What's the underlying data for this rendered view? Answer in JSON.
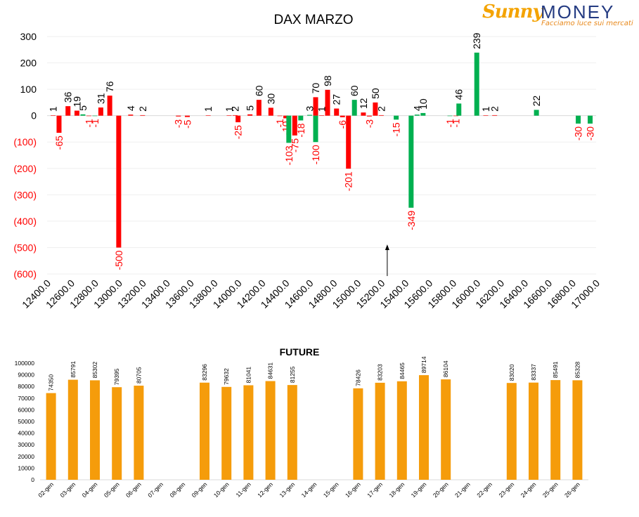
{
  "logo": {
    "brand_a": "Sunny",
    "brand_b": "MONEY",
    "tagline": "Facciamo luce sui mercati"
  },
  "colors": {
    "positive": "#00b050",
    "negative": "#ff0000",
    "negative_label": "#ff0000",
    "future_bar": "#f59c0b",
    "text": "#000000"
  },
  "chart_data": [
    {
      "type": "bar",
      "title": "DAX MARZO",
      "xlabel": "",
      "ylabel": "",
      "ylim": [
        -600,
        300
      ],
      "yticks": [
        {
          "value": 300,
          "label": "300"
        },
        {
          "value": 200,
          "label": "200"
        },
        {
          "value": 100,
          "label": "100"
        },
        {
          "value": 0,
          "label": "0"
        },
        {
          "value": -100,
          "label": "(100)"
        },
        {
          "value": -200,
          "label": "(200)"
        },
        {
          "value": -300,
          "label": "(300)"
        },
        {
          "value": -400,
          "label": "(400)"
        },
        {
          "value": -500,
          "label": "(500)"
        },
        {
          "value": -600,
          "label": "(600)"
        }
      ],
      "xlim": [
        12400,
        17000
      ],
      "xticks": [
        "12400.0",
        "12600.0",
        "12800.0",
        "13000.0",
        "13200.0",
        "13400.0",
        "13600.0",
        "13800.0",
        "14000.0",
        "14200.0",
        "14400.0",
        "14600.0",
        "14800.0",
        "15000.0",
        "15200.0",
        "15400.0",
        "15600.0",
        "15800.0",
        "16000.0",
        "16200.0",
        "16400.0",
        "16600.0",
        "16800.0",
        "17000.0"
      ],
      "grid": true,
      "current_price_marker": 15250,
      "series": [
        {
          "color": "negative",
          "values": [
            {
              "x": 12450,
              "y": 1
            },
            {
              "x": 12500,
              "y": -65
            },
            {
              "x": 12575,
              "y": 36
            },
            {
              "x": 12650,
              "y": 19
            },
            {
              "x": 12750,
              "y": -1
            },
            {
              "x": 12850,
              "y": 31
            },
            {
              "x": 12925,
              "y": 76
            },
            {
              "x": 13000,
              "y": -500
            },
            {
              "x": 13100,
              "y": 4
            },
            {
              "x": 13200,
              "y": 2
            },
            {
              "x": 13500,
              "y": -3
            },
            {
              "x": 13575,
              "y": -5
            },
            {
              "x": 13750,
              "y": 1
            },
            {
              "x": 13925,
              "y": 1
            },
            {
              "x": 13975,
              "y": 2
            },
            {
              "x": 14000,
              "y": -25
            },
            {
              "x": 14100,
              "y": 5
            },
            {
              "x": 14175,
              "y": 60
            },
            {
              "x": 14275,
              "y": 30
            },
            {
              "x": 14350,
              "y": -1
            },
            {
              "x": 14400,
              "y": -10
            },
            {
              "x": 14475,
              "y": -75
            },
            {
              "x": 14650,
              "y": 70
            },
            {
              "x": 14700,
              "y": 1
            },
            {
              "x": 14750,
              "y": 98
            },
            {
              "x": 14825,
              "y": 27
            },
            {
              "x": 14875,
              "y": -6
            },
            {
              "x": 14925,
              "y": -201
            },
            {
              "x": 15050,
              "y": 12
            },
            {
              "x": 15100,
              "y": -3
            },
            {
              "x": 15150,
              "y": 50
            },
            {
              "x": 15200,
              "y": 2
            },
            {
              "x": 15825,
              "y": -1
            },
            {
              "x": 16075,
              "y": 1
            },
            {
              "x": 16150,
              "y": 2
            }
          ]
        },
        {
          "color": "positive",
          "values": [
            {
              "x": 12700,
              "y": 5
            },
            {
              "x": 12800,
              "y": -1
            },
            {
              "x": 14425,
              "y": -103
            },
            {
              "x": 14525,
              "y": -18
            },
            {
              "x": 14600,
              "y": 3
            },
            {
              "x": 14650,
              "y": -100
            },
            {
              "x": 14975,
              "y": 60
            },
            {
              "x": 15325,
              "y": -15
            },
            {
              "x": 15450,
              "y": -349
            },
            {
              "x": 15500,
              "y": 4
            },
            {
              "x": 15550,
              "y": 10
            },
            {
              "x": 15775,
              "y": -1
            },
            {
              "x": 15850,
              "y": 46
            },
            {
              "x": 16000,
              "y": 239
            },
            {
              "x": 16500,
              "y": 22
            },
            {
              "x": 16850,
              "y": -30
            },
            {
              "x": 16950,
              "y": -30
            }
          ]
        }
      ]
    },
    {
      "type": "bar",
      "title": "FUTURE",
      "xlabel": "",
      "ylabel": "",
      "ylim": [
        0,
        100000
      ],
      "yticks": [
        "0",
        "10000",
        "20000",
        "30000",
        "40000",
        "50000",
        "60000",
        "70000",
        "80000",
        "90000",
        "100000"
      ],
      "categories": [
        "02-gen",
        "03-gen",
        "04-gen",
        "05-gen",
        "06-gen",
        "07-gen",
        "08-gen",
        "09-gen",
        "10-gen",
        "11-gen",
        "12-gen",
        "13-gen",
        "14-gen",
        "15-gen",
        "16-gen",
        "17-gen",
        "18-gen",
        "19-gen",
        "20-gen",
        "21-gen",
        "22-gen",
        "23-gen",
        "24-gen",
        "25-gen",
        "26-gen"
      ],
      "values": [
        74350,
        85791,
        85302,
        79395,
        80705,
        null,
        null,
        83296,
        79632,
        81041,
        84631,
        81255,
        null,
        null,
        78426,
        83203,
        84465,
        89714,
        86104,
        null,
        null,
        83020,
        83337,
        85491,
        85328
      ],
      "labels": [
        "74350",
        "85791",
        "85302",
        "79395",
        "80705",
        "",
        "",
        "83296",
        "79632",
        "81041",
        "84631",
        "81255",
        "",
        "",
        "78426",
        "83203",
        "84465",
        "89714",
        "86104",
        "",
        "",
        "83020",
        "83337",
        "85491",
        "85328"
      ],
      "grid": false
    }
  ]
}
